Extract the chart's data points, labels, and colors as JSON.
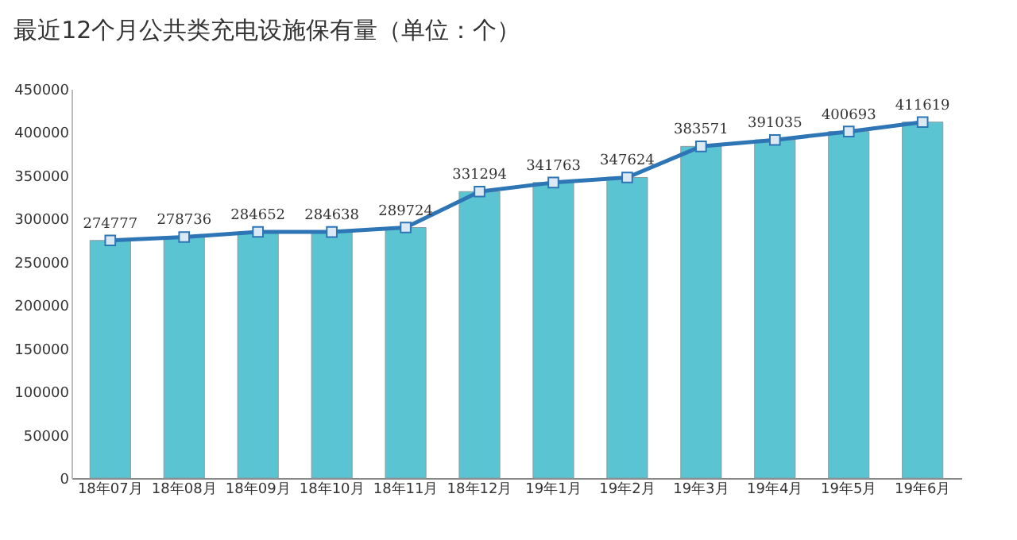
{
  "chart_data": {
    "type": "bar",
    "title": "最近12个月公共类充电设施保有量（单位：个）",
    "categories": [
      "18年07月",
      "18年08月",
      "18年09月",
      "18年10月",
      "18年11月",
      "18年12月",
      "19年1月",
      "19年2月",
      "19年3月",
      "19年4月",
      "19年5月",
      "19年6月"
    ],
    "series": [
      {
        "color": "#5bc4d2",
        "values": [
          274777,
          278736,
          284652,
          284638,
          289724,
          331294,
          341763,
          347624,
          383571,
          391035,
          400693,
          411619
        ]
      },
      {
        "type": "line",
        "color": "#2e75b6",
        "marker": "square",
        "values": [
          274777,
          278736,
          284652,
          284638,
          289724,
          331294,
          341763,
          347624,
          383571,
          391035,
          400693,
          411619
        ],
        "value_labels": [
          "274777",
          "278736",
          "284652",
          "284638",
          "289724",
          "331294",
          "341763",
          "347624",
          "383571",
          "391035",
          "400693",
          "411619"
        ]
      }
    ],
    "ylim": [
      0,
      450000
    ],
    "yticks": [
      0,
      50000,
      100000,
      150000,
      200000,
      250000,
      300000,
      350000,
      400000,
      450000
    ],
    "grid": false,
    "legend": false
  }
}
